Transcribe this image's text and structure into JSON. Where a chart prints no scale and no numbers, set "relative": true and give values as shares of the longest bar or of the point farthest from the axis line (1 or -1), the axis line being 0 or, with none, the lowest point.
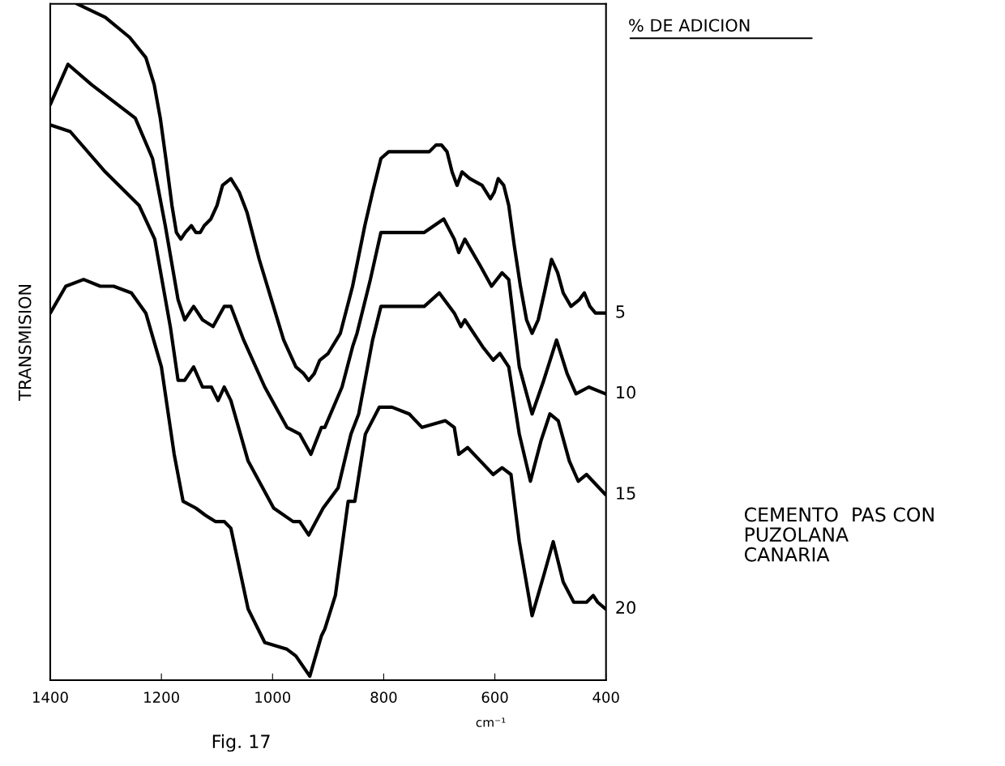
{
  "chart_data": {
    "type": "line",
    "relative": true,
    "xlabel": "cm⁻¹",
    "ylabel": "TRANSMISION",
    "legend_title": "% DE ADICION",
    "legend": false,
    "grid": false,
    "marker": "none",
    "line_style": "solid",
    "annotations": [
      "CEMENTO  PAS CON\nPUZOLANA\nCANARIA",
      "Fig. 17"
    ],
    "xlim": [
      1400,
      400
    ],
    "xticks": [
      1400,
      1200,
      1000,
      800,
      600,
      400
    ],
    "series": [
      {
        "name": "5",
        "color": "#000000",
        "x": [
          1352,
          1301,
          1257,
          1228,
          1213,
          1202,
          1192,
          1181,
          1173,
          1165,
          1157,
          1146,
          1138,
          1130,
          1123,
          1111,
          1100,
          1090,
          1075,
          1060,
          1046,
          1024,
          1002,
          980,
          958,
          944,
          935,
          925,
          915,
          900,
          878,
          856,
          834,
          820,
          805,
          791,
          762,
          732,
          718,
          706,
          696,
          686,
          677,
          668,
          659,
          645,
          623,
          608,
          601,
          594,
          584,
          575,
          565,
          554,
          543,
          533,
          522,
          511,
          498,
          487,
          477,
          463,
          448,
          439,
          429,
          419,
          400
        ],
        "values": [
          1.0,
          0.98,
          0.95,
          0.92,
          0.88,
          0.83,
          0.77,
          0.7,
          0.66,
          0.65,
          0.66,
          0.67,
          0.66,
          0.66,
          0.67,
          0.68,
          0.7,
          0.73,
          0.74,
          0.72,
          0.69,
          0.62,
          0.56,
          0.5,
          0.46,
          0.45,
          0.44,
          0.45,
          0.47,
          0.48,
          0.51,
          0.58,
          0.67,
          0.72,
          0.77,
          0.78,
          0.78,
          0.78,
          0.78,
          0.79,
          0.79,
          0.78,
          0.75,
          0.73,
          0.75,
          0.74,
          0.73,
          0.71,
          0.72,
          0.74,
          0.73,
          0.7,
          0.64,
          0.58,
          0.53,
          0.51,
          0.53,
          0.57,
          0.62,
          0.6,
          0.57,
          0.55,
          0.56,
          0.57,
          0.55,
          0.54,
          0.54
        ]
      },
      {
        "name": "10",
        "color": "#000000",
        "x": [
          1400,
          1368,
          1326,
          1247,
          1216,
          1193,
          1170,
          1158,
          1142,
          1126,
          1107,
          1087,
          1075,
          1052,
          1014,
          974,
          951,
          931,
          912,
          906,
          875,
          856,
          848,
          824,
          805,
          766,
          727,
          692,
          673,
          665,
          654,
          626,
          606,
          587,
          575,
          556,
          533,
          512,
          489,
          470,
          454,
          431,
          401
        ],
        "values": [
          0.85,
          0.91,
          0.88,
          0.83,
          0.77,
          0.67,
          0.56,
          0.53,
          0.55,
          0.53,
          0.52,
          0.55,
          0.55,
          0.5,
          0.43,
          0.37,
          0.36,
          0.33,
          0.37,
          0.37,
          0.43,
          0.49,
          0.51,
          0.59,
          0.66,
          0.66,
          0.66,
          0.68,
          0.65,
          0.63,
          0.65,
          0.61,
          0.58,
          0.6,
          0.59,
          0.46,
          0.39,
          0.44,
          0.5,
          0.45,
          0.42,
          0.43,
          0.42
        ]
      },
      {
        "name": "15",
        "color": "#000000",
        "x": [
          1400,
          1364,
          1301,
          1240,
          1212,
          1184,
          1170,
          1158,
          1142,
          1126,
          1110,
          1098,
          1087,
          1075,
          1044,
          998,
          963,
          951,
          935,
          909,
          882,
          859,
          845,
          820,
          805,
          773,
          743,
          727,
          700,
          673,
          661,
          654,
          622,
          603,
          591,
          575,
          556,
          536,
          517,
          501,
          486,
          466,
          450,
          435,
          401
        ],
        "values": [
          0.82,
          0.81,
          0.75,
          0.7,
          0.65,
          0.52,
          0.44,
          0.44,
          0.46,
          0.43,
          0.43,
          0.41,
          0.43,
          0.41,
          0.32,
          0.25,
          0.23,
          0.23,
          0.21,
          0.25,
          0.28,
          0.36,
          0.39,
          0.5,
          0.55,
          0.55,
          0.55,
          0.55,
          0.57,
          0.54,
          0.52,
          0.53,
          0.49,
          0.47,
          0.48,
          0.46,
          0.36,
          0.29,
          0.35,
          0.39,
          0.38,
          0.32,
          0.29,
          0.3,
          0.27
        ]
      },
      {
        "name": "20",
        "color": "#000000",
        "x": [
          1400,
          1372,
          1340,
          1310,
          1286,
          1254,
          1228,
          1200,
          1177,
          1161,
          1138,
          1122,
          1103,
          1087,
          1075,
          1044,
          1014,
          974,
          958,
          933,
          912,
          906,
          887,
          864,
          852,
          833,
          808,
          785,
          754,
          731,
          689,
          673,
          665,
          649,
          626,
          603,
          587,
          571,
          556,
          533,
          512,
          495,
          477,
          458,
          435,
          423,
          415,
          401
        ],
        "values": [
          0.54,
          0.58,
          0.59,
          0.58,
          0.58,
          0.57,
          0.54,
          0.46,
          0.33,
          0.26,
          0.25,
          0.24,
          0.23,
          0.23,
          0.22,
          0.1,
          0.05,
          0.04,
          0.03,
          0.0,
          0.06,
          0.07,
          0.12,
          0.26,
          0.26,
          0.36,
          0.4,
          0.4,
          0.39,
          0.37,
          0.38,
          0.37,
          0.33,
          0.34,
          0.32,
          0.3,
          0.31,
          0.3,
          0.2,
          0.09,
          0.15,
          0.2,
          0.14,
          0.11,
          0.11,
          0.12,
          0.11,
          0.1
        ]
      }
    ]
  }
}
